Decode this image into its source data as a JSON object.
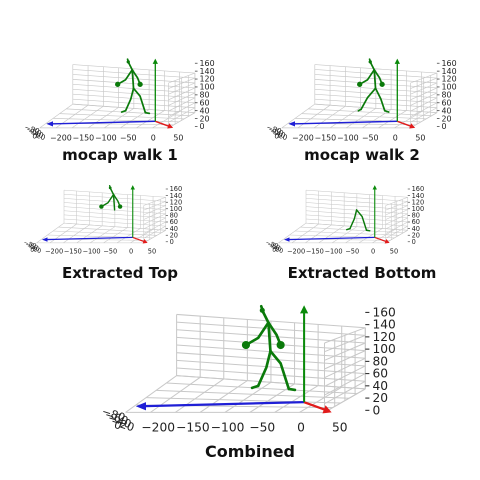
{
  "panels": [
    {
      "id": "walk1",
      "caption": "mocap walk 1",
      "figure": "full"
    },
    {
      "id": "walk2",
      "caption": "mocap walk 2",
      "figure": "full-stride"
    },
    {
      "id": "top",
      "caption": "Extracted Top",
      "figure": "top"
    },
    {
      "id": "bottom",
      "caption": "Extracted Bottom",
      "figure": "bottom"
    },
    {
      "id": "combined",
      "caption": "Combined",
      "figure": "full"
    }
  ],
  "axes": {
    "x_ticks": [
      "−200",
      "−150",
      "−100",
      "−50",
      "0",
      "50"
    ],
    "y_ticks": [
      "−80",
      "−60",
      "−40",
      "−20",
      "0"
    ],
    "z_ticks": [
      "160",
      "140",
      "120",
      "100",
      "80",
      "60",
      "40",
      "20",
      "0"
    ]
  },
  "colors": {
    "figure": "#0a7a0a",
    "x_axis_arrow": "#1f1fd6",
    "y_axis_arrow": "#e11b1b",
    "z_axis_arrow": "#0a8a0a",
    "grid": "#c8c8c8"
  }
}
